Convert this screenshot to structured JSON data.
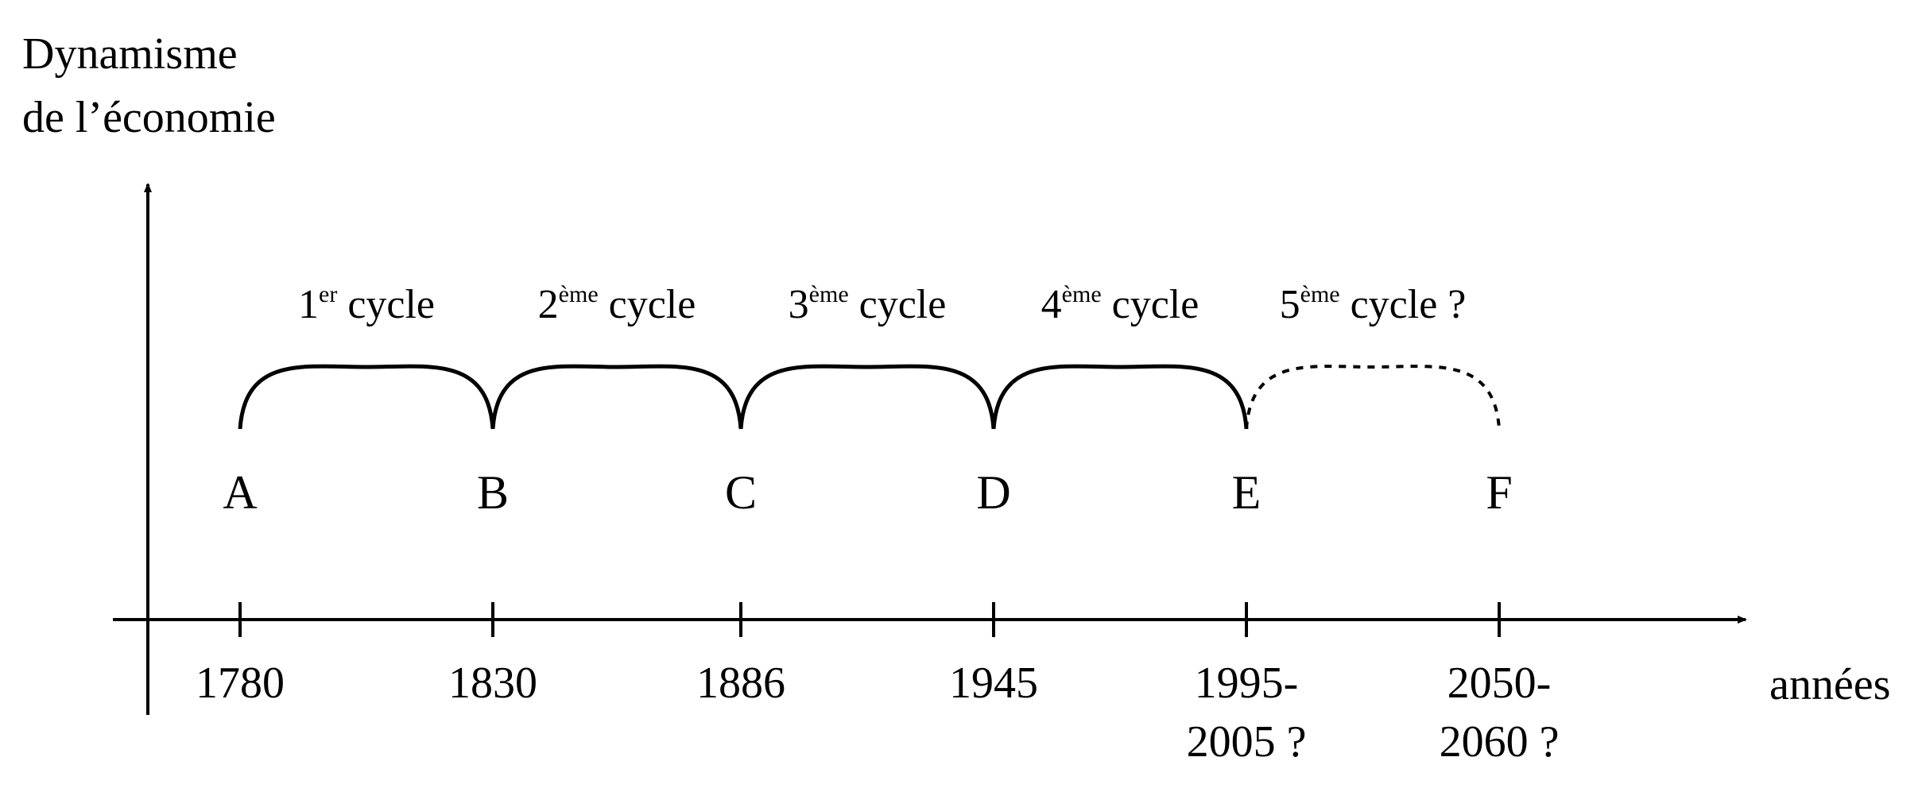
{
  "y_axis_label": [
    "Dynamisme",
    "de l’économie"
  ],
  "x_axis_label": "années",
  "points": [
    {
      "letter": "A",
      "years": [
        "1780"
      ]
    },
    {
      "letter": "B",
      "years": [
        "1830"
      ]
    },
    {
      "letter": "C",
      "years": [
        "1886"
      ]
    },
    {
      "letter": "D",
      "years": [
        "1945"
      ]
    },
    {
      "letter": "E",
      "years": [
        "1995-",
        "2005 ?"
      ]
    },
    {
      "letter": "F",
      "years": [
        "2050-",
        "2060 ?"
      ]
    }
  ],
  "cycles": [
    {
      "num": "1",
      "sup": "er",
      "word": "cycle",
      "style": "solid"
    },
    {
      "num": "2",
      "sup": "ème",
      "word": "cycle",
      "style": "solid"
    },
    {
      "num": "3",
      "sup": "ème",
      "word": "cycle",
      "style": "solid"
    },
    {
      "num": "4",
      "sup": "ème",
      "word": "cycle",
      "style": "solid"
    },
    {
      "num": "5",
      "sup": "ème",
      "word": "cycle ?",
      "style": "dashed"
    }
  ]
}
